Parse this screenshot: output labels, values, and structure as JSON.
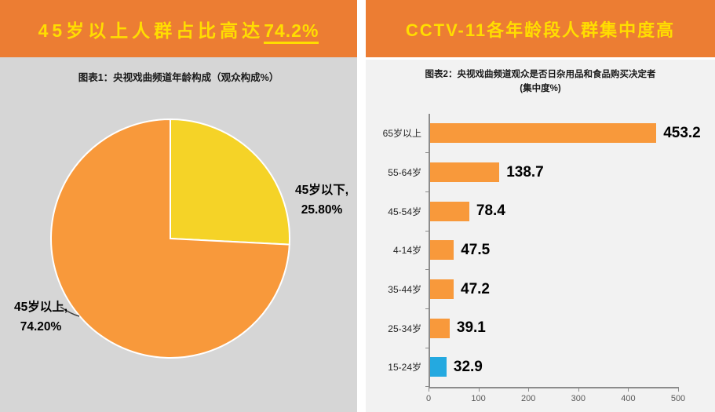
{
  "left_panel": {
    "banner_text": "45岁以上人群占比高达",
    "banner_highlight": "74.2%",
    "chart_title": "图表1：央视戏曲频道年龄构成（观众构成%）",
    "pie_label_right_line1": "45岁以下,",
    "pie_label_right_line2": "25.80%",
    "pie_label_left_line1": "45岁以上,",
    "pie_label_left_line2": "74.20%"
  },
  "right_panel": {
    "banner_text": "CCTV-11各年龄段人群集中度高",
    "chart_title_line1": "图表2：央视戏曲频道观众是否日杂用品和食品购买决定者",
    "chart_title_line2": "(集中度%)"
  },
  "colors": {
    "banner_bg": "#EC7D33",
    "banner_text": "#FFDD00",
    "left_body_bg": "#D6D6D6",
    "right_body_bg": "#F2F2F2",
    "pie_orange": "#F8993B",
    "pie_yellow": "#F5D327",
    "bar_orange": "#F8993B",
    "bar_blue": "#24A9E0",
    "axis_line": "#8C8C8C",
    "tick_label": "#595959",
    "leader_line": "#404040"
  },
  "chart_data": [
    {
      "type": "pie",
      "title": "央视戏曲频道年龄构成（观众构成%）",
      "start_angle": "top",
      "direction": "clockwise",
      "legend_position": "none",
      "slices": [
        {
          "label": "45岁以下",
          "value": 25.8,
          "display": "25.80%",
          "color": "#F5D327"
        },
        {
          "label": "45岁以上",
          "value": 74.2,
          "display": "74.20%",
          "color": "#F8993B"
        }
      ]
    },
    {
      "type": "bar",
      "orientation": "horizontal",
      "title": "央视戏曲频道观众是否日杂用品和食品购买决定者（集中度%）",
      "categories": [
        "65岁以上",
        "55-64岁",
        "45-54岁",
        "4-14岁",
        "35-44岁",
        "25-34岁",
        "15-24岁"
      ],
      "values": [
        453.2,
        138.7,
        78.4,
        47.5,
        47.2,
        39.1,
        32.9
      ],
      "value_labels": [
        "453.2",
        "138.7",
        "78.4",
        "47.5",
        "47.2",
        "39.1",
        "32.9"
      ],
      "bar_colors": [
        "#F8993B",
        "#F8993B",
        "#F8993B",
        "#F8993B",
        "#F8993B",
        "#F8993B",
        "#24A9E0"
      ],
      "xlim": [
        0,
        500
      ],
      "x_ticks": [
        "0",
        "100",
        "200",
        "300",
        "400",
        "500"
      ],
      "grid": false
    }
  ]
}
